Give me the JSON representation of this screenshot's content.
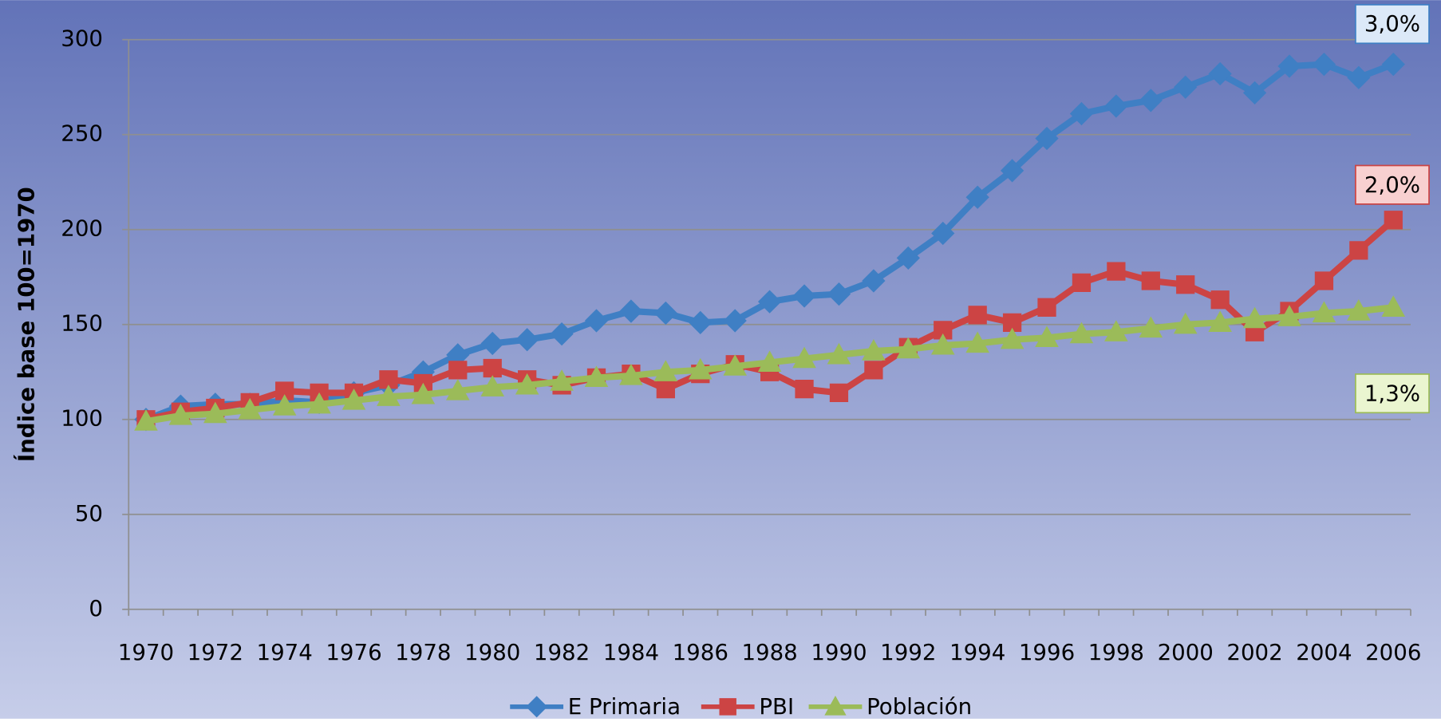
{
  "chart_data": {
    "type": "line",
    "y_axis_label": "Índice base 100=1970",
    "categories": [
      "1970",
      null,
      "1972",
      null,
      "1974",
      null,
      "1976",
      null,
      "1978",
      null,
      "1980",
      null,
      "1982",
      null,
      "1984",
      null,
      "1986",
      null,
      "1988",
      null,
      "1990",
      null,
      "1992",
      null,
      "1994",
      null,
      "1996",
      null,
      "1998",
      null,
      "2000",
      null,
      "2002",
      null,
      "2004",
      null,
      "2006"
    ],
    "series": [
      {
        "name": "E Primaria",
        "color": "#3f7fc4",
        "marker": "diamond",
        "values": [
          100,
          107,
          108,
          108,
          110,
          109,
          114,
          118,
          125,
          134,
          140,
          142,
          145,
          152,
          157,
          156,
          151,
          152,
          162,
          165,
          166,
          173,
          185,
          198,
          217,
          231,
          248,
          261,
          265,
          268,
          275,
          282,
          272,
          286,
          287,
          280,
          287
        ]
      },
      {
        "name": "PBI",
        "color": "#cc4444",
        "marker": "square",
        "values": [
          100,
          104,
          106,
          109,
          115,
          114,
          114,
          121,
          119,
          126,
          127,
          121,
          118,
          122,
          124,
          116,
          124,
          129,
          125,
          116,
          114,
          126,
          138,
          147,
          155,
          151,
          159,
          172,
          178,
          173,
          171,
          163,
          146,
          157,
          173,
          189,
          205
        ]
      },
      {
        "name": "Población",
        "color": "#9bbb59",
        "marker": "triangle",
        "values": [
          99,
          102,
          103,
          105,
          107,
          108,
          110,
          112,
          113,
          115,
          117,
          118,
          120,
          122,
          123,
          125,
          126,
          128,
          130,
          132,
          134,
          136,
          137,
          139,
          140,
          142,
          143,
          145,
          146,
          148,
          150,
          151,
          153,
          154,
          156,
          157,
          159
        ]
      }
    ],
    "ylim": [
      0,
      300
    ],
    "yticks": [
      0,
      50,
      100,
      150,
      200,
      250,
      300
    ],
    "grid": true,
    "legend": "bottom",
    "annotations": [
      {
        "text": "3,0%",
        "color": "#dce9f8"
      },
      {
        "text": "2,0%",
        "color": "#f8d0d0"
      },
      {
        "text": "1,3%",
        "color": "#eaf5d0"
      }
    ]
  }
}
